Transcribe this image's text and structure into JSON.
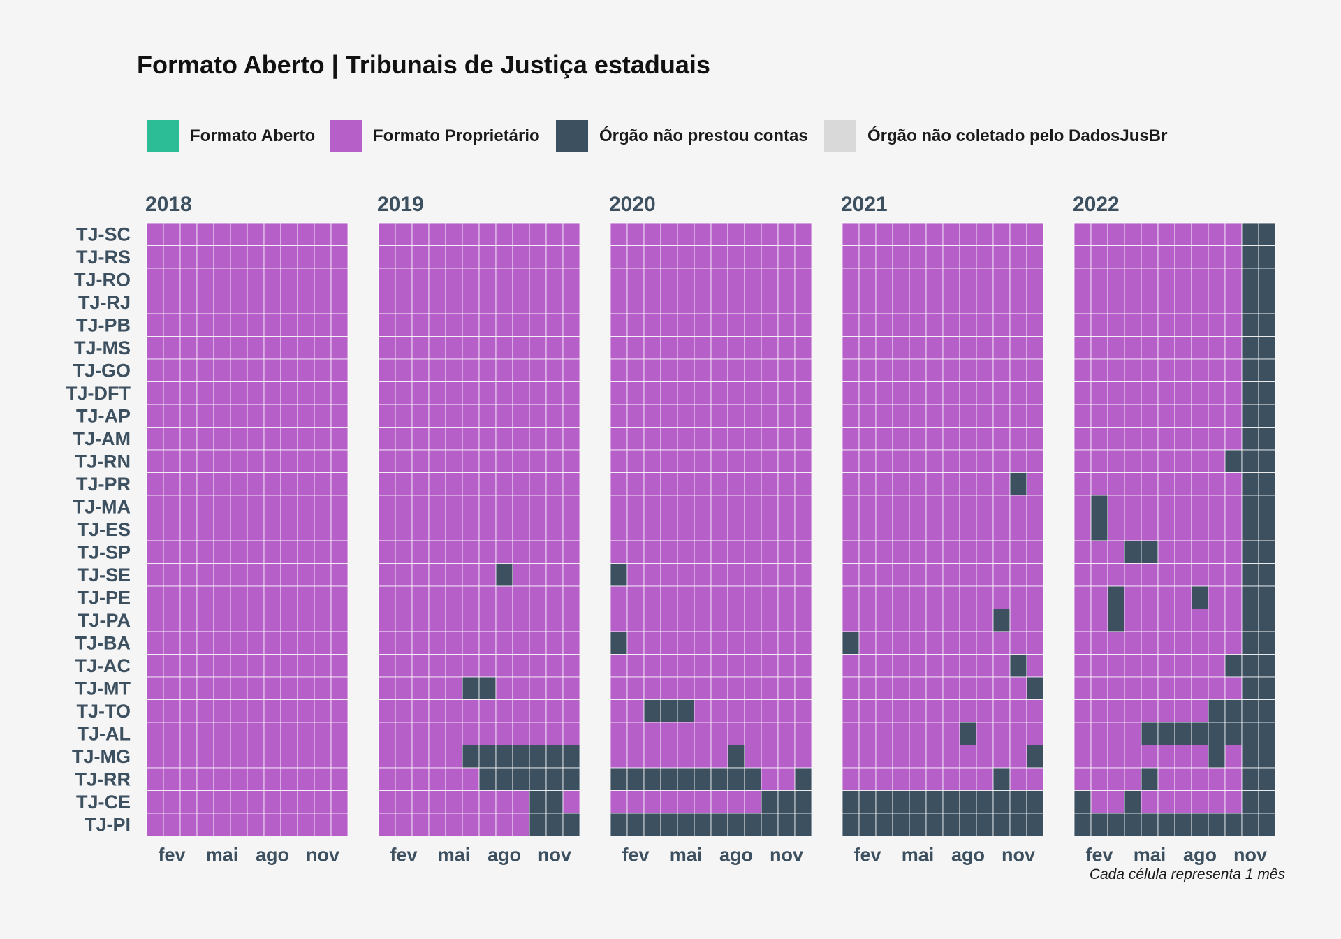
{
  "title": "Formato Aberto | Tribunais de Justiça estaduais",
  "caption": "Cada célula representa 1 mês",
  "colors": {
    "aberto": "#2dbd96",
    "proprietario": "#b65fc9",
    "nao_prestou": "#3d5060",
    "nao_coletado": "#d9d9d9",
    "text": "#3d5060"
  },
  "legend": [
    {
      "key": "A",
      "label": "Formato Aberto",
      "color": "#2dbd96"
    },
    {
      "key": "P",
      "label": "Formato Proprietário",
      "color": "#b65fc9"
    },
    {
      "key": "N",
      "label": "Órgão não prestou contas",
      "color": "#3d5060"
    },
    {
      "key": "X",
      "label": "Órgão não coletado pelo DadosJusBr",
      "color": "#d9d9d9"
    }
  ],
  "chart_data": {
    "type": "heatmap",
    "title": "Formato Aberto | Tribunais de Justiça estaduais",
    "x_ticks": [
      {
        "month": 2,
        "label": "fev"
      },
      {
        "month": 5,
        "label": "mai"
      },
      {
        "month": 8,
        "label": "ago"
      },
      {
        "month": 11,
        "label": "nov"
      }
    ],
    "rows": [
      "TJ-SC",
      "TJ-RS",
      "TJ-RO",
      "TJ-RJ",
      "TJ-PB",
      "TJ-MS",
      "TJ-GO",
      "TJ-DFT",
      "TJ-AP",
      "TJ-AM",
      "TJ-RN",
      "TJ-PR",
      "TJ-MA",
      "TJ-ES",
      "TJ-SP",
      "TJ-SE",
      "TJ-PE",
      "TJ-PA",
      "TJ-BA",
      "TJ-AC",
      "TJ-MT",
      "TJ-TO",
      "TJ-AL",
      "TJ-MG",
      "TJ-RR",
      "TJ-CE",
      "TJ-PI"
    ],
    "panels": [
      {
        "year": "2018",
        "cells": {
          "TJ-SC": "PPPPPPPPPPPP",
          "TJ-RS": "PPPPPPPPPPPP",
          "TJ-RO": "PPPPPPPPPPPP",
          "TJ-RJ": "PPPPPPPPPPPP",
          "TJ-PB": "PPPPPPPPPPPP",
          "TJ-MS": "PPPPPPPPPPPP",
          "TJ-GO": "PPPPPPPPPPPP",
          "TJ-DFT": "PPPPPPPPPPPP",
          "TJ-AP": "PPPPPPPPPPPP",
          "TJ-AM": "PPPPPPPPPPPP",
          "TJ-RN": "PPPPPPPPPPPP",
          "TJ-PR": "PPPPPPPPPPPP",
          "TJ-MA": "PPPPPPPPPPPP",
          "TJ-ES": "PPPPPPPPPPPP",
          "TJ-SP": "PPPPPPPPPPPP",
          "TJ-SE": "PPPPPPPPPPPP",
          "TJ-PE": "PPPPPPPPPPPP",
          "TJ-PA": "PPPPPPPPPPPP",
          "TJ-BA": "PPPPPPPPPPPP",
          "TJ-AC": "PPPPPPPPPPPP",
          "TJ-MT": "PPPPPPPPPPPP",
          "TJ-TO": "PPPPPPPPPPPP",
          "TJ-AL": "PPPPPPPPPPPP",
          "TJ-MG": "PPPPPPPPPPPP",
          "TJ-RR": "PPPPPPPPPPPP",
          "TJ-CE": "PPPPPPPPPPPP",
          "TJ-PI": "PPPPPPPPPPPP"
        }
      },
      {
        "year": "2019",
        "cells": {
          "TJ-SC": "PPPPPPPPPPPP",
          "TJ-RS": "PPPPPPPPPPPP",
          "TJ-RO": "PPPPPPPPPPPP",
          "TJ-RJ": "PPPPPPPPPPPP",
          "TJ-PB": "PPPPPPPPPPPP",
          "TJ-MS": "PPPPPPPPPPPP",
          "TJ-GO": "PPPPPPPPPPPP",
          "TJ-DFT": "PPPPPPPPPPPP",
          "TJ-AP": "PPPPPPPPPPPP",
          "TJ-AM": "PPPPPPPPPPPP",
          "TJ-RN": "PPPPPPPPPPPP",
          "TJ-PR": "PPPPPPPPPPPP",
          "TJ-MA": "PPPPPPPPPPPP",
          "TJ-ES": "PPPPPPPPPPPP",
          "TJ-SP": "PPPPPPPPPPPP",
          "TJ-SE": "PPPPPPPNPPPP",
          "TJ-PE": "PPPPPPPPPPPP",
          "TJ-PA": "PPPPPPPPPPPP",
          "TJ-BA": "PPPPPPPPPPPP",
          "TJ-AC": "PPPPPPPPPPPP",
          "TJ-MT": "PPPPPNNPPPPP",
          "TJ-TO": "PPPPPPPPPPPP",
          "TJ-AL": "PPPPPPPPPPPP",
          "TJ-MG": "PPPPPNNNNNNN",
          "TJ-RR": "PPPPPPNNNNNN",
          "TJ-CE": "PPPPPPPPPNNP",
          "TJ-PI": "PPPPPPPPPNNN"
        }
      },
      {
        "year": "2020",
        "cells": {
          "TJ-SC": "PPPPPPPPPPPP",
          "TJ-RS": "PPPPPPPPPPPP",
          "TJ-RO": "PPPPPPPPPPPP",
          "TJ-RJ": "PPPPPPPPPPPP",
          "TJ-PB": "PPPPPPPPPPPP",
          "TJ-MS": "PPPPPPPPPPPP",
          "TJ-GO": "PPPPPPPPPPPP",
          "TJ-DFT": "PPPPPPPPPPPP",
          "TJ-AP": "PPPPPPPPPPPP",
          "TJ-AM": "PPPPPPPPPPPP",
          "TJ-RN": "PPPPPPPPPPPP",
          "TJ-PR": "PPPPPPPPPPPP",
          "TJ-MA": "PPPPPPPPPPPP",
          "TJ-ES": "PPPPPPPPPPPP",
          "TJ-SP": "PPPPPPPPPPPP",
          "TJ-SE": "NPPPPPPPPPPP",
          "TJ-PE": "PPPPPPPPPPPP",
          "TJ-PA": "PPPPPPPPPPPP",
          "TJ-BA": "NPPPPPPPPPPP",
          "TJ-AC": "PPPPPPPPPPPP",
          "TJ-MT": "PPPPPPPPPPPP",
          "TJ-TO": "PPNNNPPPPPPP",
          "TJ-AL": "PPPPPPPPPPPP",
          "TJ-MG": "PPPPPPPNPPPP",
          "TJ-RR": "NNNNNNNNNPPN",
          "TJ-CE": "PPPPPPPPPNNN",
          "TJ-PI": "NNNNNNNNNNNN"
        }
      },
      {
        "year": "2021",
        "cells": {
          "TJ-SC": "PPPPPPPPPPPP",
          "TJ-RS": "PPPPPPPPPPPP",
          "TJ-RO": "PPPPPPPPPPPP",
          "TJ-RJ": "PPPPPPPPPPPP",
          "TJ-PB": "PPPPPPPPPPPP",
          "TJ-MS": "PPPPPPPPPPPP",
          "TJ-GO": "PPPPPPPPPPPP",
          "TJ-DFT": "PPPPPPPPPPPP",
          "TJ-AP": "PPPPPPPPPPPP",
          "TJ-AM": "PPPPPPPPPPPP",
          "TJ-RN": "PPPPPPPPPPPP",
          "TJ-PR": "PPPPPPPPPPNP",
          "TJ-MA": "PPPPPPPPPPPP",
          "TJ-ES": "PPPPPPPPPPPP",
          "TJ-SP": "PPPPPPPPPPPP",
          "TJ-SE": "PPPPPPPPPPPP",
          "TJ-PE": "PPPPPPPPPPPP",
          "TJ-PA": "PPPPPPPPPNPP",
          "TJ-BA": "NPPPPPPPPPPP",
          "TJ-AC": "PPPPPPPPPPNP",
          "TJ-MT": "PPPPPPPPPPPN",
          "TJ-TO": "PPPPPPPPPPPP",
          "TJ-AL": "PPPPPPPNPPPP",
          "TJ-MG": "PPPPPPPPPPPN",
          "TJ-RR": "PPPPPPPPPNPP",
          "TJ-CE": "NNNNNNNNNNNN",
          "TJ-PI": "NNNNNNNNNNNN"
        }
      },
      {
        "year": "2022",
        "cells": {
          "TJ-SC": "PPPPPPPPPPNN",
          "TJ-RS": "PPPPPPPPPPNN",
          "TJ-RO": "PPPPPPPPPPNN",
          "TJ-RJ": "PPPPPPPPPPNN",
          "TJ-PB": "PPPPPPPPPPNN",
          "TJ-MS": "PPPPPPPPPPNN",
          "TJ-GO": "PPPPPPPPPPNN",
          "TJ-DFT": "PPPPPPPPPPNN",
          "TJ-AP": "PPPPPPPPPPNN",
          "TJ-AM": "PPPPPPPPPPNN",
          "TJ-RN": "PPPPPPPPPNNN",
          "TJ-PR": "PPPPPPPPPPNN",
          "TJ-MA": "PNPPPPPPPPNN",
          "TJ-ES": "PNPPPPPPPPNN",
          "TJ-SP": "PPPNNPPPPPNN",
          "TJ-SE": "PPPPPPPPPPNN",
          "TJ-PE": "PPNPPPPNPPNN",
          "TJ-PA": "PPNPPPPPPPNN",
          "TJ-BA": "PPPPPPPPPPNN",
          "TJ-AC": "PPPPPPPPPNNN",
          "TJ-MT": "PPPPPPPPPPNN",
          "TJ-TO": "PPPPPPPPNNNN",
          "TJ-AL": "PPPPNNNNNNNN",
          "TJ-MG": "PPPPPPPPNPNN",
          "TJ-RR": "PPPPNPPPPPNN",
          "TJ-CE": "NPPNPPPPPPNN",
          "TJ-PI": "NNNNNNNNNNNN"
        }
      }
    ]
  }
}
